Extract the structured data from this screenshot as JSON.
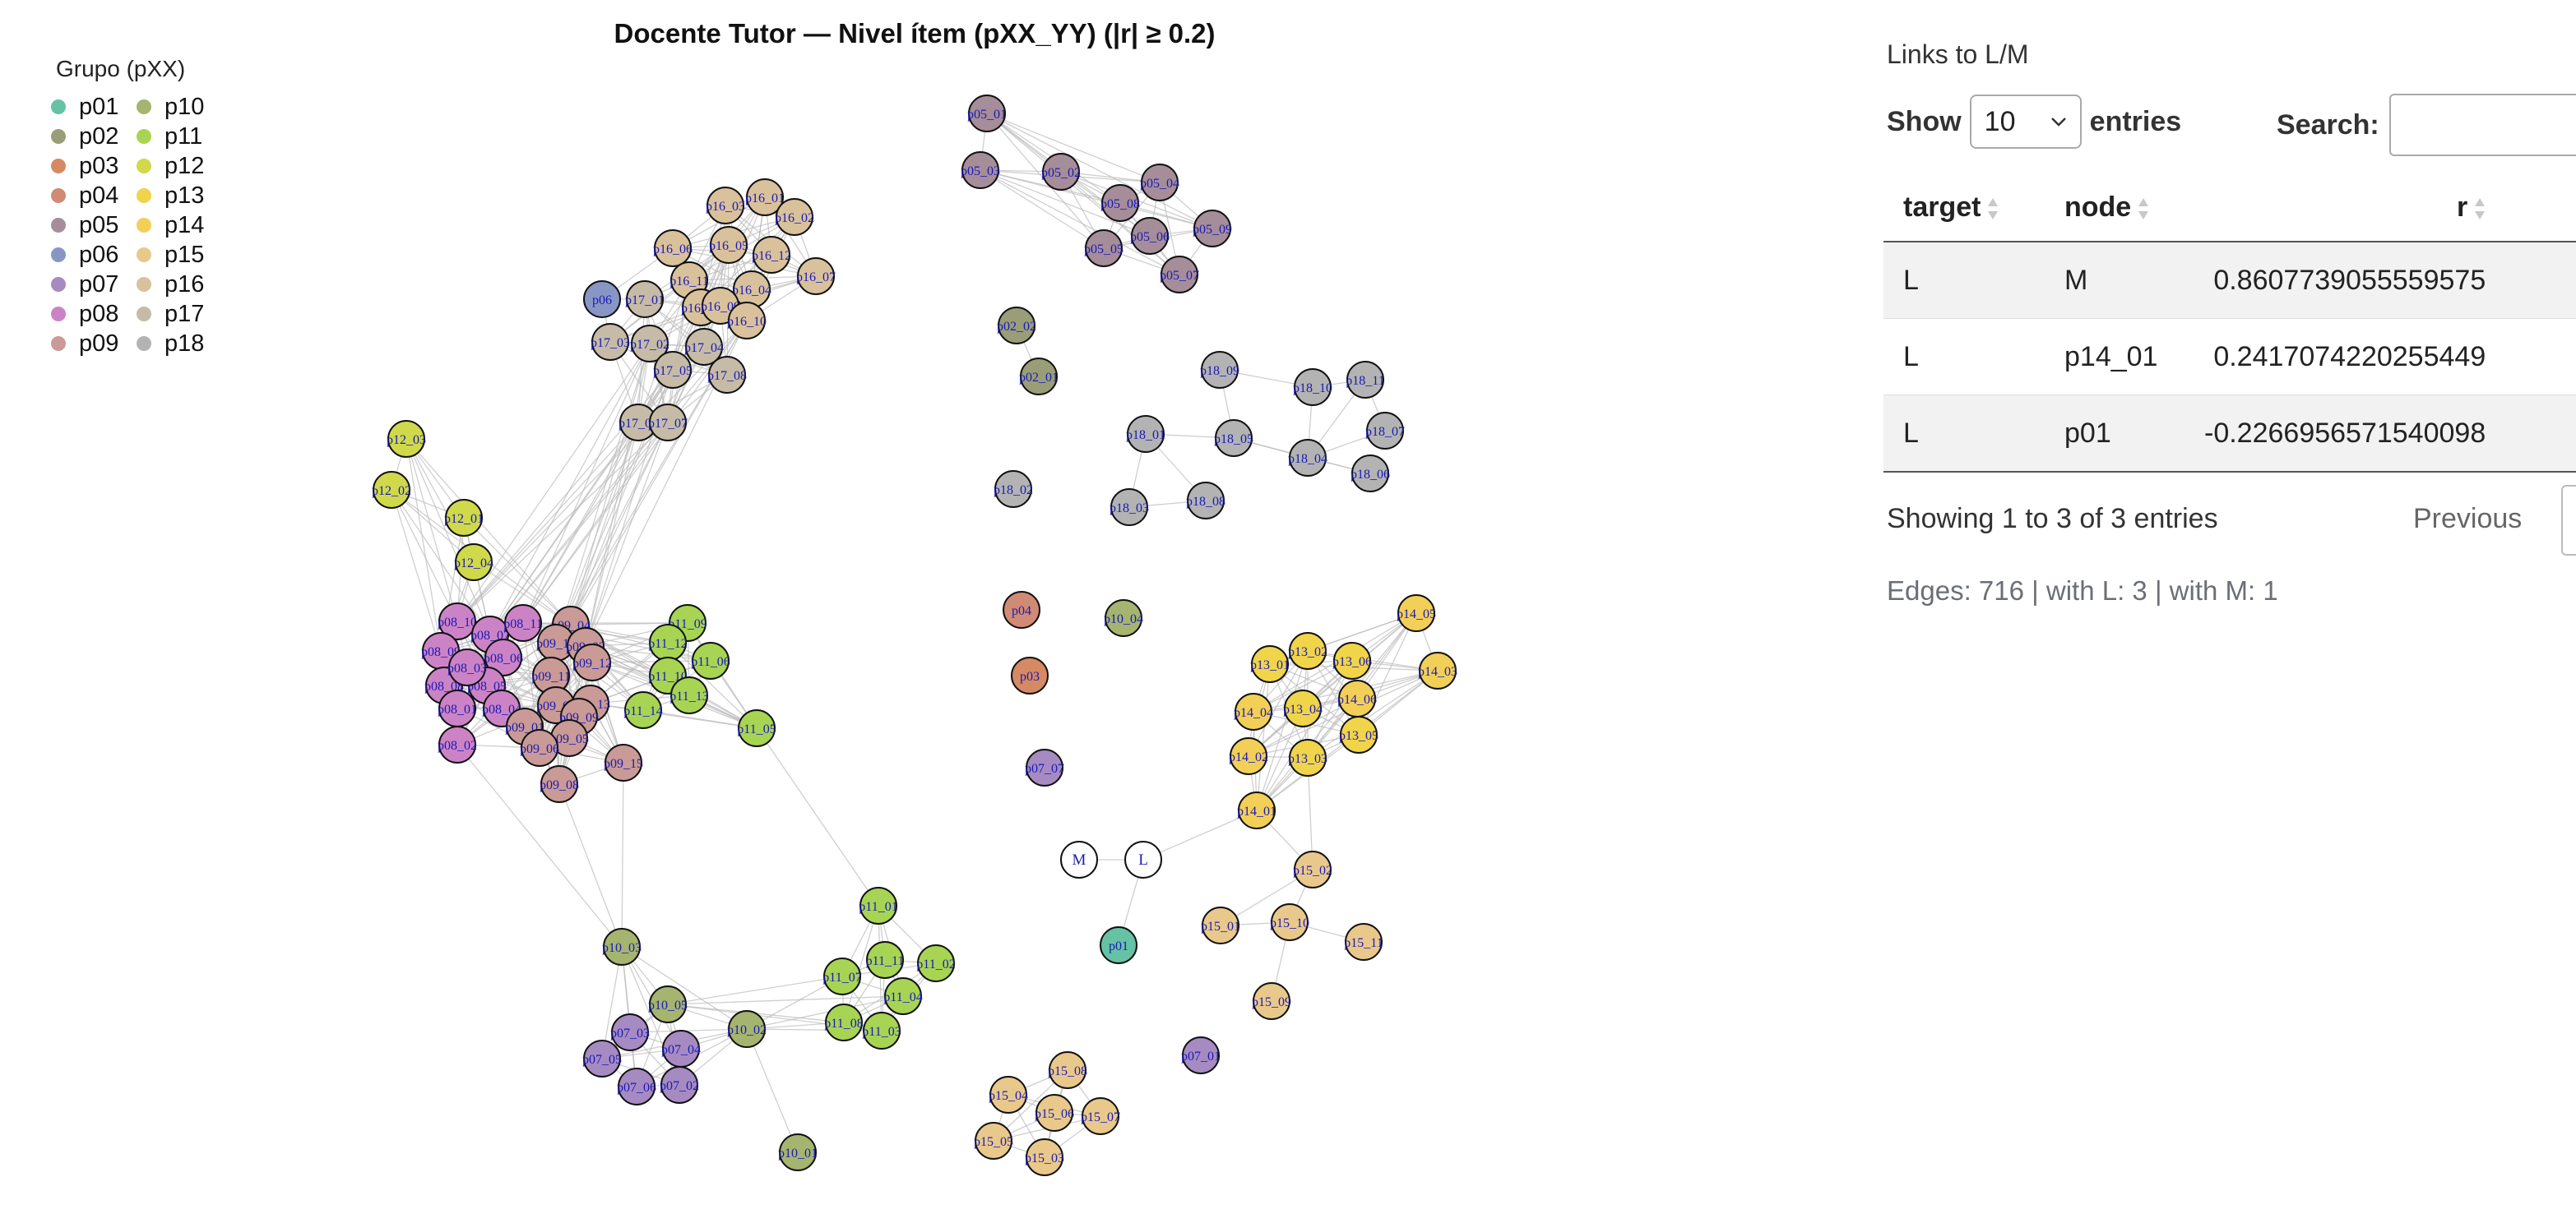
{
  "chart": {
    "title": "Docente Tutor — Nivel ítem (pXX_YY) (|r| ≥ 0.2)",
    "legend_title": "Grupo (pXX)",
    "groups": [
      {
        "name": "p01",
        "color": "#66c2a5"
      },
      {
        "name": "p02",
        "color": "#9a9e78"
      },
      {
        "name": "p03",
        "color": "#d58a63"
      },
      {
        "name": "p04",
        "color": "#d18a74"
      },
      {
        "name": "p05",
        "color": "#a58d99"
      },
      {
        "name": "p06",
        "color": "#8896c5"
      },
      {
        "name": "p07",
        "color": "#a68bc2"
      },
      {
        "name": "p08",
        "color": "#cc83c6"
      },
      {
        "name": "p09",
        "color": "#c99a96"
      },
      {
        "name": "p10",
        "color": "#a5b46f"
      },
      {
        "name": "p11",
        "color": "#a7d453"
      },
      {
        "name": "p12",
        "color": "#cfd94a"
      },
      {
        "name": "p13",
        "color": "#f0d44a"
      },
      {
        "name": "p14",
        "color": "#f2cf57"
      },
      {
        "name": "p15",
        "color": "#e9c88b"
      },
      {
        "name": "p16",
        "color": "#d9c19c"
      },
      {
        "name": "p17",
        "color": "#c5bba7"
      },
      {
        "name": "p18",
        "color": "#b3b3b3"
      }
    ],
    "special_node_color": "#ffffff",
    "edge_color": "#bbbbbb",
    "label_color": "#1a1ab4",
    "nodes": [
      {
        "label": "p05_01",
        "group": "p05"
      },
      {
        "label": "p05_03",
        "group": "p05"
      },
      {
        "label": "p05_02",
        "group": "p05"
      },
      {
        "label": "p05_04",
        "group": "p05"
      },
      {
        "label": "p05_08",
        "group": "p05"
      },
      {
        "label": "p05_09",
        "group": "p05"
      },
      {
        "label": "p05_06",
        "group": "p05"
      },
      {
        "label": "p05_05",
        "group": "p05"
      },
      {
        "label": "p05_07",
        "group": "p05"
      },
      {
        "label": "p02_02",
        "group": "p02"
      },
      {
        "label": "p02_01",
        "group": "p02"
      },
      {
        "label": "p18_09",
        "group": "p18"
      },
      {
        "label": "p18_10",
        "group": "p18"
      },
      {
        "label": "p18_11",
        "group": "p18"
      },
      {
        "label": "p18_01",
        "group": "p18"
      },
      {
        "label": "p18_05",
        "group": "p18"
      },
      {
        "label": "p18_07",
        "group": "p18"
      },
      {
        "label": "p18_04",
        "group": "p18"
      },
      {
        "label": "p18_02",
        "group": "p18"
      },
      {
        "label": "p18_03",
        "group": "p18"
      },
      {
        "label": "p18_08",
        "group": "p18"
      },
      {
        "label": "p18_06",
        "group": "p18"
      },
      {
        "label": "p16_06",
        "group": "p16"
      },
      {
        "label": "p16_03",
        "group": "p16"
      },
      {
        "label": "p16_01",
        "group": "p16"
      },
      {
        "label": "p16_05",
        "group": "p16"
      },
      {
        "label": "p16_02",
        "group": "p16"
      },
      {
        "label": "p16_11",
        "group": "p16"
      },
      {
        "label": "p16_12",
        "group": "p16"
      },
      {
        "label": "p16_07",
        "group": "p16"
      },
      {
        "label": "p16_04",
        "group": "p16"
      },
      {
        "label": "p16_08",
        "group": "p16"
      },
      {
        "label": "p16_09",
        "group": "p16"
      },
      {
        "label": "p16_10",
        "group": "p16"
      },
      {
        "label": "p06",
        "group": "p06"
      },
      {
        "label": "p17_01",
        "group": "p17"
      },
      {
        "label": "p17_02",
        "group": "p17"
      },
      {
        "label": "p17_03",
        "group": "p17"
      },
      {
        "label": "p17_04",
        "group": "p17"
      },
      {
        "label": "p17_05",
        "group": "p17"
      },
      {
        "label": "p17_06",
        "group": "p17"
      },
      {
        "label": "p17_07",
        "group": "p17"
      },
      {
        "label": "p17_08",
        "group": "p17"
      },
      {
        "label": "p12_03",
        "group": "p12"
      },
      {
        "label": "p12_02",
        "group": "p12"
      },
      {
        "label": "p12_01",
        "group": "p12"
      },
      {
        "label": "p12_04",
        "group": "p12"
      },
      {
        "label": "p08_10",
        "group": "p08"
      },
      {
        "label": "p08_07",
        "group": "p08"
      },
      {
        "label": "p08_11",
        "group": "p08"
      },
      {
        "label": "p08_09",
        "group": "p08"
      },
      {
        "label": "p08_06",
        "group": "p08"
      },
      {
        "label": "p08_08",
        "group": "p08"
      },
      {
        "label": "p08_05",
        "group": "p08"
      },
      {
        "label": "p08_03",
        "group": "p08"
      },
      {
        "label": "p08_01",
        "group": "p08"
      },
      {
        "label": "p08_04",
        "group": "p08"
      },
      {
        "label": "p08_02",
        "group": "p08"
      },
      {
        "label": "p09_04",
        "group": "p09"
      },
      {
        "label": "p09_10",
        "group": "p09"
      },
      {
        "label": "p09_02",
        "group": "p09"
      },
      {
        "label": "p09_11",
        "group": "p09"
      },
      {
        "label": "p09_12",
        "group": "p09"
      },
      {
        "label": "p09_13",
        "group": "p09"
      },
      {
        "label": "p09_03",
        "group": "p09"
      },
      {
        "label": "p09_01",
        "group": "p09"
      },
      {
        "label": "p09_09",
        "group": "p09"
      },
      {
        "label": "p09_05",
        "group": "p09"
      },
      {
        "label": "p09_06",
        "group": "p09"
      },
      {
        "label": "p09_15",
        "group": "p09"
      },
      {
        "label": "p09_08",
        "group": "p09"
      },
      {
        "label": "p11_09",
        "group": "p11"
      },
      {
        "label": "p11_12",
        "group": "p11"
      },
      {
        "label": "p11_06",
        "group": "p11"
      },
      {
        "label": "p11_10",
        "group": "p11"
      },
      {
        "label": "p11_13",
        "group": "p11"
      },
      {
        "label": "p11_14",
        "group": "p11"
      },
      {
        "label": "p11_05",
        "group": "p11"
      },
      {
        "label": "p04",
        "group": "p04"
      },
      {
        "label": "p03",
        "group": "p03"
      },
      {
        "label": "p10_04",
        "group": "p10"
      },
      {
        "label": "p07_07",
        "group": "p07"
      },
      {
        "label": "p14_05",
        "group": "p14"
      },
      {
        "label": "p13_02",
        "group": "p13"
      },
      {
        "label": "p13_01",
        "group": "p13"
      },
      {
        "label": "p13_06",
        "group": "p13"
      },
      {
        "label": "p14_03",
        "group": "p14"
      },
      {
        "label": "p14_04",
        "group": "p14"
      },
      {
        "label": "p13_04",
        "group": "p13"
      },
      {
        "label": "p14_06",
        "group": "p14"
      },
      {
        "label": "p14_02",
        "group": "p14"
      },
      {
        "label": "p13_05",
        "group": "p13"
      },
      {
        "label": "p13_03",
        "group": "p13"
      },
      {
        "label": "p14_01",
        "group": "p14"
      },
      {
        "label": "M",
        "group": "special"
      },
      {
        "label": "L",
        "group": "special"
      },
      {
        "label": "p01",
        "group": "p01"
      },
      {
        "label": "p15_02",
        "group": "p15"
      },
      {
        "label": "p15_01",
        "group": "p15"
      },
      {
        "label": "p15_10",
        "group": "p15"
      },
      {
        "label": "p15_11",
        "group": "p15"
      },
      {
        "label": "p15_09",
        "group": "p15"
      },
      {
        "label": "p11_01",
        "group": "p11"
      },
      {
        "label": "p11_11",
        "group": "p11"
      },
      {
        "label": "p11_02",
        "group": "p11"
      },
      {
        "label": "p11_07",
        "group": "p11"
      },
      {
        "label": "p11_04",
        "group": "p11"
      },
      {
        "label": "p11_08",
        "group": "p11"
      },
      {
        "label": "p11_03",
        "group": "p11"
      },
      {
        "label": "p10_03",
        "group": "p10"
      },
      {
        "label": "p10_05",
        "group": "p10"
      },
      {
        "label": "p10_02",
        "group": "p10"
      },
      {
        "label": "p10_01",
        "group": "p10"
      },
      {
        "label": "p07_03",
        "group": "p07"
      },
      {
        "label": "p07_04",
        "group": "p07"
      },
      {
        "label": "p07_05",
        "group": "p07"
      },
      {
        "label": "p07_06",
        "group": "p07"
      },
      {
        "label": "p07_02",
        "group": "p07"
      },
      {
        "label": "p07_01",
        "group": "p07"
      },
      {
        "label": "p15_08",
        "group": "p15"
      },
      {
        "label": "p15_04",
        "group": "p15"
      },
      {
        "label": "p15_06",
        "group": "p15"
      },
      {
        "label": "p15_07",
        "group": "p15"
      },
      {
        "label": "p15_05",
        "group": "p15"
      },
      {
        "label": "p15_03",
        "group": "p15"
      }
    ]
  },
  "panel": {
    "title": "Links to L/M",
    "show_label": "Show",
    "entries_value": "10",
    "entries_label": "entries",
    "search_label": "Search:",
    "search_value": "",
    "columns": [
      "target",
      "node",
      "r"
    ],
    "rows": [
      {
        "target": "L",
        "node": "M",
        "r": "0.8607739055559575"
      },
      {
        "target": "L",
        "node": "p14_01",
        "r": "0.2417074220255449"
      },
      {
        "target": "L",
        "node": "p01",
        "r": "-0.2266956571540098"
      }
    ],
    "info": "Showing 1 to 3 of 3 entries",
    "previous_label": "Previous",
    "edges_summary": "Edges: 716 | with L: 3 | with M: 1"
  }
}
